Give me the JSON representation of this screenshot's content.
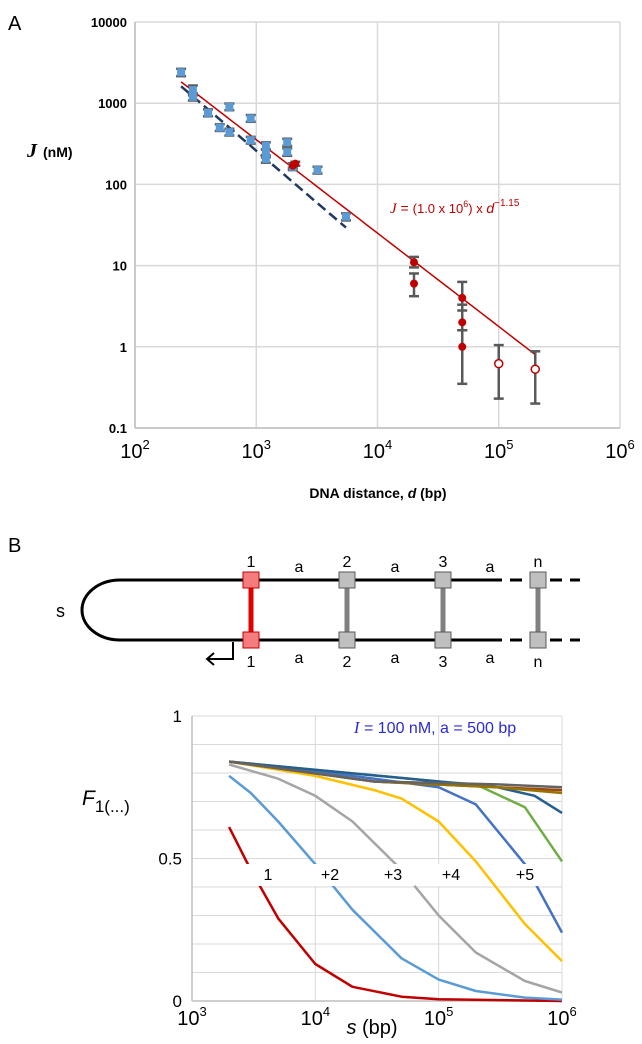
{
  "panel_a": {
    "label": "A",
    "ylabel_symbol": "J",
    "ylabel_unit": "(nM)",
    "xlabel": "DNA distance, ",
    "xlabel_var": "d",
    "xlabel_unit": " (bp)",
    "fit": {
      "var": "J",
      "eq": " = ",
      "coef_open": "(1.0 x 10",
      "coef_exp": "6",
      "coef_close": ") x ",
      "d": "d",
      "exp": "−1.15"
    },
    "y_ticks": [
      "10000",
      "1000",
      "100",
      "10",
      "1",
      "0.1"
    ],
    "x_tick_base": "10",
    "x_tick_exps": [
      "2",
      "3",
      "4",
      "5",
      "6"
    ]
  },
  "panel_b": {
    "label": "B",
    "diagram": {
      "loop_label": "s",
      "top_numbers": [
        "1",
        "2",
        "3",
        "n"
      ],
      "bottom_numbers": [
        "1",
        "2",
        "3",
        "n"
      ],
      "spacer_label": "a"
    },
    "annotation": {
      "var": "I",
      "text": " = 100 nM,  a = 500 bp"
    },
    "ylabel_main": "F",
    "ylabel_sub": "1(...)",
    "xlabel_var": "s",
    "xlabel_unit": " (bp)",
    "y_ticks": [
      "0",
      "0.5",
      "1"
    ],
    "x_tick_base": "10",
    "x_tick_exps": [
      "3",
      "4",
      "5",
      "6"
    ],
    "curve_labels": [
      "1",
      "+2",
      "+3",
      "+4",
      "+5"
    ]
  },
  "chart_data": [
    {
      "type": "scatter",
      "panel": "A",
      "x_scale": "log",
      "y_scale": "log",
      "xlim": [
        100,
        1000000
      ],
      "ylim": [
        0.1,
        10000
      ],
      "grid": true,
      "series": [
        {
          "marker": "square",
          "color": "#5b9bd5",
          "points": [
            {
              "x": 240,
              "y": 2400,
              "lo": 2150,
              "hi": 2650
            },
            {
              "x": 300,
              "y": 1450,
              "lo": 1250,
              "hi": 1650
            },
            {
              "x": 300,
              "y": 1200,
              "lo": 1080,
              "hi": 1330
            },
            {
              "x": 400,
              "y": 760,
              "lo": 690,
              "hi": 840
            },
            {
              "x": 500,
              "y": 500,
              "lo": 455,
              "hi": 550
            },
            {
              "x": 600,
              "y": 900,
              "lo": 820,
              "hi": 990
            },
            {
              "x": 600,
              "y": 440,
              "lo": 400,
              "hi": 485
            },
            {
              "x": 900,
              "y": 650,
              "lo": 590,
              "hi": 715
            },
            {
              "x": 900,
              "y": 350,
              "lo": 318,
              "hi": 385
            },
            {
              "x": 1200,
              "y": 300,
              "lo": 270,
              "hi": 330
            },
            {
              "x": 1200,
              "y": 240,
              "lo": 215,
              "hi": 268
            },
            {
              "x": 1200,
              "y": 205,
              "lo": 185,
              "hi": 228
            },
            {
              "x": 1800,
              "y": 330,
              "lo": 298,
              "hi": 365
            },
            {
              "x": 1800,
              "y": 250,
              "lo": 225,
              "hi": 278
            },
            {
              "x": 2000,
              "y": 165,
              "lo": 150,
              "hi": 182
            },
            {
              "x": 3200,
              "y": 150,
              "lo": 136,
              "hi": 165
            },
            {
              "x": 5500,
              "y": 40,
              "lo": 36,
              "hi": 44
            }
          ]
        },
        {
          "marker": "circle",
          "color": "#c00000",
          "points": [
            {
              "x": 2000,
              "y": 170,
              "lo": 160,
              "hi": 180
            },
            {
              "x": 2100,
              "y": 180,
              "lo": 170,
              "hi": 190
            },
            {
              "x": 20000,
              "y": 11,
              "lo": 9.5,
              "hi": 12.8
            },
            {
              "x": 20000,
              "y": 6,
              "lo": 4.2,
              "hi": 8
            },
            {
              "x": 50000,
              "y": 4,
              "lo": 2.8,
              "hi": 6.3
            },
            {
              "x": 50000,
              "y": 2,
              "lo": 1.6,
              "hi": 3.3
            },
            {
              "x": 50000,
              "y": 1,
              "lo": 0.35,
              "hi": 1.6
            }
          ]
        },
        {
          "marker": "open-circle",
          "color": "#c00000",
          "points": [
            {
              "x": 100000,
              "y": 0.62,
              "lo": 0.23,
              "hi": 1.05
            },
            {
              "x": 200000,
              "y": 0.53,
              "lo": 0.2,
              "hi": 0.88
            }
          ]
        }
      ],
      "fits": [
        {
          "style": "solid",
          "color": "#c00000",
          "coef": 1000000,
          "exponent": -1.15,
          "x_range": [
            240,
            200000
          ]
        },
        {
          "style": "dashed",
          "color": "#1f3864",
          "coef": 1800000,
          "exponent": -1.28,
          "x_range": [
            240,
            5500
          ]
        }
      ]
    },
    {
      "type": "line",
      "panel": "B",
      "x_scale": "log",
      "y_scale": "linear",
      "xlim": [
        1000,
        1000000
      ],
      "ylim": [
        0,
        1
      ],
      "grid": true,
      "series": [
        {
          "color": "#c00000",
          "points": [
            [
              2000,
              0.61
            ],
            [
              3000,
              0.46
            ],
            [
              5000,
              0.29
            ],
            [
              10000,
              0.13
            ],
            [
              20000,
              0.05
            ],
            [
              50000,
              0.015
            ],
            [
              100000,
              0.006
            ],
            [
              1000000,
              0.0
            ]
          ]
        },
        {
          "color": "#5b9bd5",
          "points": [
            [
              2000,
              0.79
            ],
            [
              3000,
              0.73
            ],
            [
              5000,
              0.63
            ],
            [
              10000,
              0.48
            ],
            [
              20000,
              0.32
            ],
            [
              50000,
              0.15
            ],
            [
              100000,
              0.075
            ],
            [
              200000,
              0.035
            ],
            [
              500000,
              0.012
            ],
            [
              1000000,
              0.005
            ]
          ]
        },
        {
          "color": "#a5a5a5",
          "points": [
            [
              2000,
              0.83
            ],
            [
              5000,
              0.78
            ],
            [
              10000,
              0.72
            ],
            [
              20000,
              0.63
            ],
            [
              50000,
              0.46
            ],
            [
              100000,
              0.3
            ],
            [
              200000,
              0.17
            ],
            [
              500000,
              0.07
            ],
            [
              1000000,
              0.03
            ]
          ]
        },
        {
          "color": "#ffc000",
          "points": [
            [
              2000,
              0.84
            ],
            [
              10000,
              0.79
            ],
            [
              30000,
              0.74
            ],
            [
              50000,
              0.71
            ],
            [
              100000,
              0.63
            ],
            [
              200000,
              0.49
            ],
            [
              500000,
              0.27
            ],
            [
              1000000,
              0.14
            ]
          ]
        },
        {
          "color": "#4472c4",
          "points": [
            [
              2000,
              0.84
            ],
            [
              20000,
              0.79
            ],
            [
              100000,
              0.75
            ],
            [
              200000,
              0.69
            ],
            [
              500000,
              0.48
            ],
            [
              1000000,
              0.24
            ]
          ]
        },
        {
          "color": "#70ad47",
          "points": [
            [
              2000,
              0.84
            ],
            [
              100000,
              0.77
            ],
            [
              200000,
              0.76
            ],
            [
              500000,
              0.68
            ],
            [
              1000000,
              0.49
            ]
          ]
        },
        {
          "color": "#255e91",
          "points": [
            [
              2000,
              0.84
            ],
            [
              100000,
              0.77
            ],
            [
              300000,
              0.75
            ],
            [
              600000,
              0.72
            ],
            [
              1000000,
              0.66
            ]
          ]
        },
        {
          "color": "#9e480e",
          "points": [
            [
              2000,
              0.84
            ],
            [
              30000,
              0.77
            ],
            [
              300000,
              0.75
            ],
            [
              1000000,
              0.74
            ]
          ]
        },
        {
          "color": "#997300",
          "points": [
            [
              2000,
              0.84
            ],
            [
              30000,
              0.77
            ],
            [
              300000,
              0.75
            ],
            [
              1000000,
              0.73
            ]
          ]
        },
        {
          "color": "#636363",
          "points": [
            [
              2000,
              0.84
            ],
            [
              30000,
              0.77
            ],
            [
              300000,
              0.76
            ],
            [
              1000000,
              0.75
            ]
          ]
        }
      ]
    }
  ]
}
